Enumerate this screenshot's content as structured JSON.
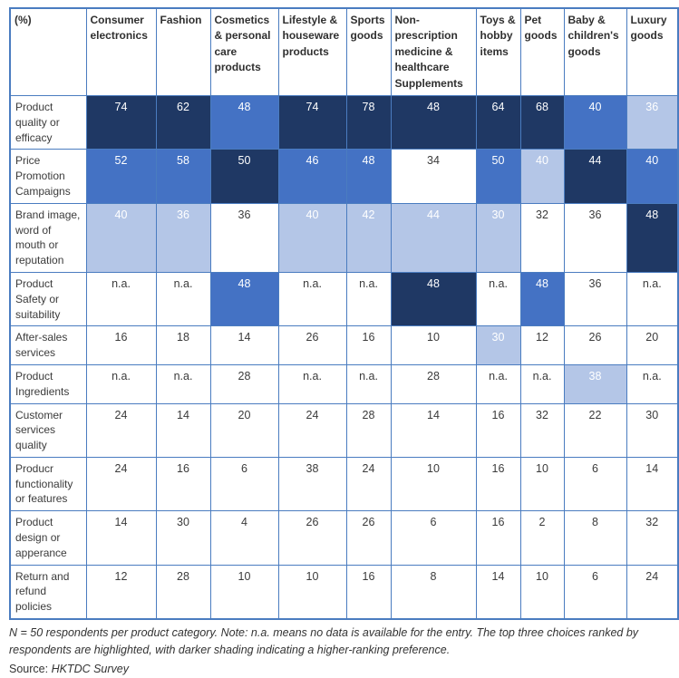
{
  "colors": {
    "dark": "#1F3864",
    "medium": "#4472C4",
    "light": "#B4C6E7",
    "white": "#FFFFFF",
    "border": "#4A7CC0",
    "text": "#3b3b3b"
  },
  "table": {
    "corner_label": "(%)",
    "columns": [
      "Consumer electronics",
      "Fashion",
      "Cosmetics & personal care products",
      "Lifestyle & houseware products",
      "Sports goods",
      "Non-prescription medicine & healthcare Supplements",
      "Toys & hobby items",
      "Pet goods",
      "Baby & children's goods",
      "Luxury goods"
    ],
    "rows": [
      {
        "label": "Product quality or efficacy",
        "values": [
          "74",
          "62",
          "48",
          "74",
          "78",
          "48",
          "64",
          "68",
          "40",
          "36"
        ],
        "shades": [
          3,
          3,
          2,
          3,
          3,
          3,
          3,
          3,
          2,
          1
        ]
      },
      {
        "label": "Price Promotion Campaigns",
        "values": [
          "52",
          "58",
          "50",
          "46",
          "48",
          "34",
          "50",
          "40",
          "44",
          "40"
        ],
        "shades": [
          2,
          2,
          3,
          2,
          2,
          0,
          2,
          1,
          3,
          2
        ]
      },
      {
        "label": "Brand image, word of mouth or reputation",
        "values": [
          "40",
          "36",
          "36",
          "40",
          "42",
          "44",
          "30",
          "32",
          "36",
          "48"
        ],
        "shades": [
          1,
          1,
          0,
          1,
          1,
          1,
          1,
          0,
          0,
          3
        ]
      },
      {
        "label": "Product Safety or suitability",
        "values": [
          "n.a.",
          "n.a.",
          "48",
          "n.a.",
          "n.a.",
          "48",
          "n.a.",
          "48",
          "36",
          "n.a."
        ],
        "shades": [
          0,
          0,
          2,
          0,
          0,
          3,
          0,
          2,
          0,
          0
        ]
      },
      {
        "label": "After-sales services",
        "values": [
          "16",
          "18",
          "14",
          "26",
          "16",
          "10",
          "30",
          "12",
          "26",
          "20"
        ],
        "shades": [
          0,
          0,
          0,
          0,
          0,
          0,
          1,
          0,
          0,
          0
        ]
      },
      {
        "label": "Product Ingredients",
        "values": [
          "n.a.",
          "n.a.",
          "28",
          "n.a.",
          "n.a.",
          "28",
          "n.a.",
          "n.a.",
          "38",
          "n.a."
        ],
        "shades": [
          0,
          0,
          0,
          0,
          0,
          0,
          0,
          0,
          1,
          0
        ]
      },
      {
        "label": "Customer services quality",
        "values": [
          "24",
          "14",
          "20",
          "24",
          "28",
          "14",
          "16",
          "32",
          "22",
          "30"
        ],
        "shades": [
          0,
          0,
          0,
          0,
          0,
          0,
          0,
          0,
          0,
          0
        ]
      },
      {
        "label": "Producr functionality or features",
        "values": [
          "24",
          "16",
          "6",
          "38",
          "24",
          "10",
          "16",
          "10",
          "6",
          "14"
        ],
        "shades": [
          0,
          0,
          0,
          0,
          0,
          0,
          0,
          0,
          0,
          0
        ]
      },
      {
        "label": "Product design or apperance",
        "values": [
          "14",
          "30",
          "4",
          "26",
          "26",
          "6",
          "16",
          "2",
          "8",
          "32"
        ],
        "shades": [
          0,
          0,
          0,
          0,
          0,
          0,
          0,
          0,
          0,
          0
        ]
      },
      {
        "label": "Return and refund policies",
        "values": [
          "12",
          "28",
          "10",
          "10",
          "16",
          "8",
          "14",
          "10",
          "6",
          "24"
        ],
        "shades": [
          0,
          0,
          0,
          0,
          0,
          0,
          0,
          0,
          0,
          0
        ]
      }
    ]
  },
  "footnote": "N = 50 respondents per product category. Note: n.a. means no data is available for the entry. The top three choices ranked by respondents are highlighted, with darker shading indicating a higher-ranking preference.",
  "source_prefix": "Source: ",
  "source_value": "HKTDC Survey",
  "chart_data": {
    "type": "heatmap",
    "title": "",
    "unit": "(%)",
    "columns": [
      "Consumer electronics",
      "Fashion",
      "Cosmetics & personal care products",
      "Lifestyle & houseware products",
      "Sports goods",
      "Non-prescription medicine & healthcare Supplements",
      "Toys & hobby items",
      "Pet goods",
      "Baby & children's goods",
      "Luxury goods"
    ],
    "rows": [
      "Product quality or efficacy",
      "Price Promotion Campaigns",
      "Brand image, word of mouth or reputation",
      "Product Safety or suitability",
      "After-sales services",
      "Product Ingredients",
      "Customer services quality",
      "Producr functionality or features",
      "Product design or apperance",
      "Return and refund policies"
    ],
    "values": [
      [
        74,
        62,
        48,
        74,
        78,
        48,
        64,
        68,
        40,
        36
      ],
      [
        52,
        58,
        50,
        46,
        48,
        34,
        50,
        40,
        44,
        40
      ],
      [
        40,
        36,
        36,
        40,
        42,
        44,
        30,
        32,
        36,
        48
      ],
      [
        null,
        null,
        48,
        null,
        null,
        48,
        null,
        48,
        36,
        null
      ],
      [
        16,
        18,
        14,
        26,
        16,
        10,
        30,
        12,
        26,
        20
      ],
      [
        null,
        null,
        28,
        null,
        null,
        28,
        null,
        null,
        38,
        null
      ],
      [
        24,
        14,
        20,
        24,
        28,
        14,
        16,
        32,
        22,
        30
      ],
      [
        24,
        16,
        6,
        38,
        24,
        10,
        16,
        10,
        6,
        14
      ],
      [
        14,
        30,
        4,
        26,
        26,
        6,
        16,
        2,
        8,
        32
      ],
      [
        12,
        28,
        10,
        10,
        16,
        8,
        14,
        10,
        6,
        24
      ]
    ],
    "shading": [
      [
        3,
        3,
        2,
        3,
        3,
        3,
        3,
        3,
        2,
        1
      ],
      [
        2,
        2,
        3,
        2,
        2,
        0,
        2,
        1,
        3,
        2
      ],
      [
        1,
        1,
        0,
        1,
        1,
        1,
        1,
        0,
        0,
        3
      ],
      [
        0,
        0,
        2,
        0,
        0,
        3,
        0,
        2,
        0,
        0
      ],
      [
        0,
        0,
        0,
        0,
        0,
        0,
        1,
        0,
        0,
        0
      ],
      [
        0,
        0,
        0,
        0,
        0,
        0,
        0,
        0,
        1,
        0
      ],
      [
        0,
        0,
        0,
        0,
        0,
        0,
        0,
        0,
        0,
        0
      ],
      [
        0,
        0,
        0,
        0,
        0,
        0,
        0,
        0,
        0,
        0
      ],
      [
        0,
        0,
        0,
        0,
        0,
        0,
        0,
        0,
        0,
        0
      ],
      [
        0,
        0,
        0,
        0,
        0,
        0,
        0,
        0,
        0,
        0
      ]
    ],
    "na_display": "n.a.",
    "shade_legend": {
      "0": "not highlighted",
      "1": "highlighted - lower of top three",
      "2": "highlighted - middle of top three",
      "3": "highlighted - highest ranking preference"
    },
    "legend_position": "none",
    "grid": true
  }
}
